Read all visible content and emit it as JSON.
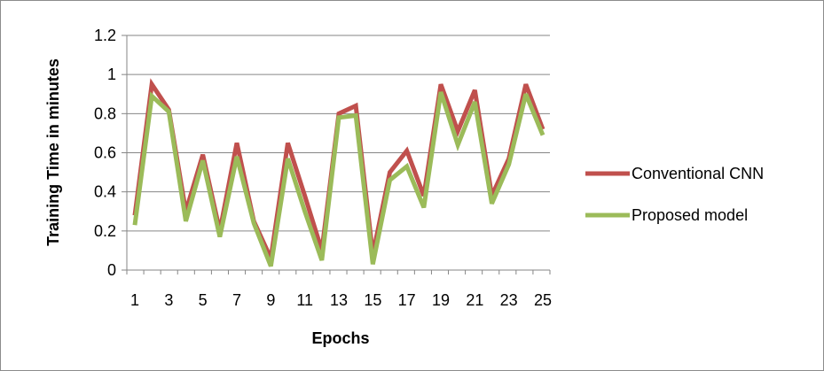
{
  "chart_data": {
    "type": "line",
    "title": "",
    "xlabel": "Epochs",
    "ylabel": "Training Time in minutes",
    "x": [
      1,
      2,
      3,
      4,
      5,
      6,
      7,
      8,
      9,
      10,
      11,
      12,
      13,
      14,
      15,
      16,
      17,
      18,
      19,
      20,
      21,
      22,
      23,
      24,
      25
    ],
    "x_tick_labels": [
      "1",
      "3",
      "5",
      "7",
      "9",
      "11",
      "13",
      "15",
      "17",
      "19",
      "21",
      "23",
      "25"
    ],
    "ylim": [
      0,
      1.2
    ],
    "y_ticks": [
      0,
      0.2,
      0.4,
      0.6,
      0.8,
      1,
      1.2
    ],
    "y_tick_labels": [
      "0",
      "0.2",
      "0.4",
      "0.6",
      "0.8",
      "1",
      "1.2"
    ],
    "grid": "horizontal",
    "legend_position": "right",
    "series": [
      {
        "name": "Conventional CNN",
        "color": "#c0504d",
        "values": [
          0.28,
          0.95,
          0.82,
          0.3,
          0.59,
          0.2,
          0.65,
          0.25,
          0.06,
          0.65,
          0.38,
          0.1,
          0.8,
          0.84,
          0.08,
          0.5,
          0.61,
          0.38,
          0.95,
          0.71,
          0.92,
          0.38,
          0.57,
          0.95,
          0.72
        ]
      },
      {
        "name": "Proposed model",
        "color": "#9bbb59",
        "values": [
          0.23,
          0.89,
          0.81,
          0.25,
          0.56,
          0.17,
          0.58,
          0.24,
          0.02,
          0.57,
          0.3,
          0.05,
          0.78,
          0.79,
          0.03,
          0.46,
          0.53,
          0.32,
          0.91,
          0.64,
          0.86,
          0.34,
          0.54,
          0.9,
          0.69
        ]
      }
    ]
  }
}
